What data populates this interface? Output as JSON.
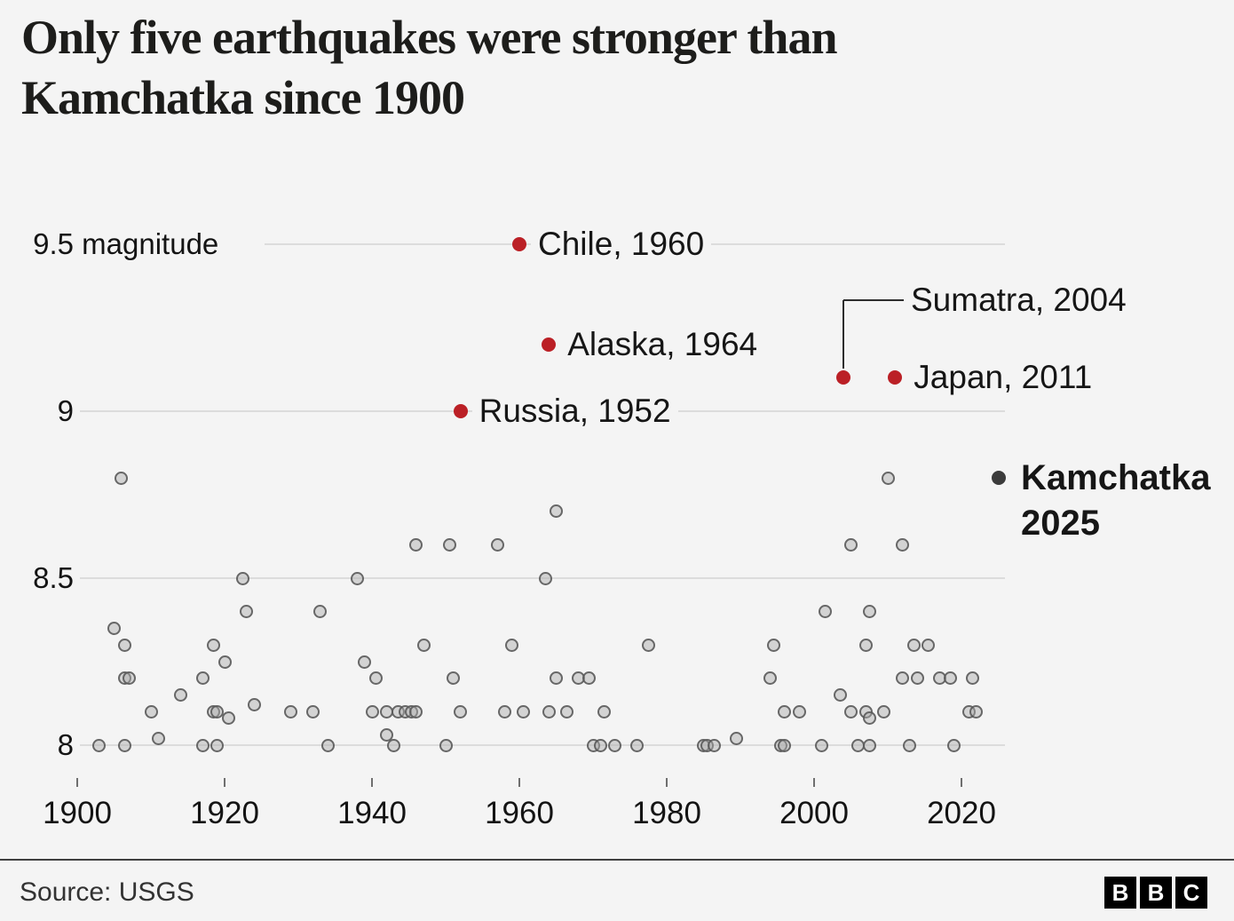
{
  "title": {
    "line1": "Only five earthquakes were stronger than",
    "line2": "Kamchatka since 1900"
  },
  "footer": {
    "source": "Source: USGS",
    "logo_letters": [
      "B",
      "B",
      "C"
    ]
  },
  "colors": {
    "background": "#f4f4f4",
    "highlight_red": "#bb2026",
    "kamchatka_dark": "#3b3b3b",
    "grey_dot_stroke": "#555555",
    "gridline": "#dcdcdc"
  },
  "chart_data": {
    "type": "scatter",
    "title": "Only five earthquakes were stronger than Kamchatka since 1900",
    "xlabel": "",
    "ylabel": "magnitude",
    "x_ticks": [
      1900,
      1920,
      1940,
      1960,
      1980,
      2000,
      2020
    ],
    "xlim": [
      1900,
      2026
    ],
    "ylim": [
      8.0,
      9.5
    ],
    "grid": "horizontal",
    "y_gridlines": [
      {
        "value": 9.5,
        "num": "9.5",
        "suffix": " magnitude"
      },
      {
        "value": 9.0,
        "num": "9",
        "suffix": ""
      },
      {
        "value": 8.5,
        "num": "8.5",
        "suffix": ""
      },
      {
        "value": 8.0,
        "num": "8",
        "suffix": ""
      }
    ],
    "highlighted": [
      {
        "place": "Chile",
        "year": 1960,
        "magnitude": 9.5,
        "label": "Chile, 1960",
        "callout": false
      },
      {
        "place": "Alaska",
        "year": 1964,
        "magnitude": 9.2,
        "label": "Alaska, 1964",
        "callout": false
      },
      {
        "place": "Russia",
        "year": 1952,
        "magnitude": 9.0,
        "label": "Russia, 1952",
        "callout": false
      },
      {
        "place": "Sumatra",
        "year": 2004,
        "magnitude": 9.1,
        "label": "Sumatra, 2004",
        "callout": true
      },
      {
        "place": "Japan",
        "year": 2011,
        "magnitude": 9.1,
        "label": "Japan, 2011",
        "callout": false
      }
    ],
    "kamchatka": {
      "place": "Kamchatka",
      "year": 2025,
      "magnitude": 8.8,
      "label_line1": "Kamchatka",
      "label_line2": "2025"
    },
    "other_quakes": [
      [
        1903,
        8.0
      ],
      [
        1905,
        8.35
      ],
      [
        1906,
        8.8
      ],
      [
        1906.5,
        8.3
      ],
      [
        1906.5,
        8.2
      ],
      [
        1907,
        8.2
      ],
      [
        1906.5,
        8.0
      ],
      [
        1910,
        8.1
      ],
      [
        1911,
        8.02
      ],
      [
        1914,
        8.15
      ],
      [
        1917,
        8.2
      ],
      [
        1917,
        8.0
      ],
      [
        1918.5,
        8.3
      ],
      [
        1918.5,
        8.1
      ],
      [
        1919,
        8.1
      ],
      [
        1919,
        8.0
      ],
      [
        1920,
        8.25
      ],
      [
        1920.5,
        8.08
      ],
      [
        1922.5,
        8.5
      ],
      [
        1923,
        8.4
      ],
      [
        1924,
        8.12
      ],
      [
        1929,
        8.1
      ],
      [
        1932,
        8.1
      ],
      [
        1933,
        8.4
      ],
      [
        1934,
        8.0
      ],
      [
        1938,
        8.5
      ],
      [
        1939,
        8.25
      ],
      [
        1940.5,
        8.2
      ],
      [
        1940,
        8.1
      ],
      [
        1942,
        8.1
      ],
      [
        1942,
        8.03
      ],
      [
        1943.5,
        8.1
      ],
      [
        1943,
        8.0
      ],
      [
        1944.5,
        8.1
      ],
      [
        1945.4,
        8.1
      ],
      [
        1946,
        8.1
      ],
      [
        1946,
        8.6
      ],
      [
        1947,
        8.3
      ],
      [
        1950.5,
        8.6
      ],
      [
        1950,
        8.0
      ],
      [
        1951,
        8.2
      ],
      [
        1952,
        8.1
      ],
      [
        1957,
        8.6
      ],
      [
        1959,
        8.3
      ],
      [
        1958,
        8.1
      ],
      [
        1960.5,
        8.1
      ],
      [
        1963.5,
        8.5
      ],
      [
        1964,
        8.1
      ],
      [
        1965,
        8.7
      ],
      [
        1965,
        8.2
      ],
      [
        1966.5,
        8.1
      ],
      [
        1968,
        8.2
      ],
      [
        1969.5,
        8.2
      ],
      [
        1970,
        8.0
      ],
      [
        1971.5,
        8.1
      ],
      [
        1971,
        8.0
      ],
      [
        1973,
        8.0
      ],
      [
        1976,
        8.0
      ],
      [
        1977.5,
        8.3
      ],
      [
        1985,
        8.0
      ],
      [
        1985.5,
        8.0
      ],
      [
        1986.5,
        8.0
      ],
      [
        1989.5,
        8.02
      ],
      [
        1994,
        8.2
      ],
      [
        1994.5,
        8.3
      ],
      [
        1995.5,
        8.0
      ],
      [
        1996,
        8.0
      ],
      [
        1996,
        8.1
      ],
      [
        1998,
        8.1
      ],
      [
        2001.5,
        8.4
      ],
      [
        2001,
        8.0
      ],
      [
        2003.5,
        8.15
      ],
      [
        2005,
        8.6
      ],
      [
        2005,
        8.1
      ],
      [
        2007,
        8.3
      ],
      [
        2007,
        8.1
      ],
      [
        2007.5,
        8.08
      ],
      [
        2006,
        8.0
      ],
      [
        2007.5,
        8.0
      ],
      [
        2007.5,
        8.4
      ],
      [
        2009.5,
        8.1
      ],
      [
        2010,
        8.8
      ],
      [
        2012,
        8.6
      ],
      [
        2012,
        8.2
      ],
      [
        2013.5,
        8.3
      ],
      [
        2013,
        8.0
      ],
      [
        2014,
        8.2
      ],
      [
        2015.5,
        8.3
      ],
      [
        2017,
        8.2
      ],
      [
        2018.5,
        8.2
      ],
      [
        2019,
        8.0
      ],
      [
        2021.5,
        8.2
      ],
      [
        2021,
        8.1
      ],
      [
        2022,
        8.1
      ]
    ]
  }
}
